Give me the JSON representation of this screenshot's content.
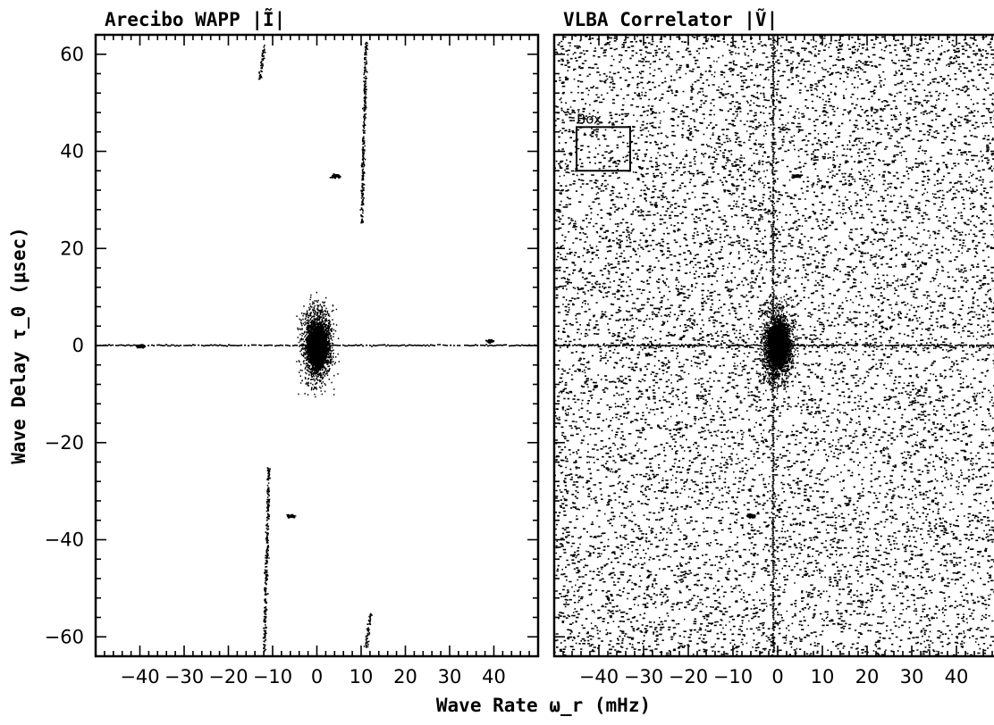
{
  "chart_data": {
    "type": "heatmap",
    "xlabel": "Wave Rate ω_r (mHz)",
    "ylabel": "Wave Delay τ_0  (μsec)",
    "xlim": [
      -50,
      50
    ],
    "ylim": [
      -64,
      64
    ],
    "x_ticks": [
      -40,
      -30,
      -20,
      -10,
      0,
      10,
      20,
      30,
      40
    ],
    "x_tick_labels": [
      "−40",
      "−30",
      "−20",
      "−10",
      "0",
      "10",
      "20",
      "30",
      "40"
    ],
    "y_ticks": [
      60,
      40,
      20,
      0,
      -20,
      -40,
      -60
    ],
    "y_tick_labels": [
      "60",
      "40",
      "20",
      "0",
      "−20",
      "−40",
      "−60"
    ],
    "panels": [
      {
        "title": "Arecibo WAPP |Ĩ|",
        "features": [
          {
            "kind": "central-core",
            "x": 0,
            "y": 0
          },
          {
            "kind": "horizontal-line",
            "y": 0
          },
          {
            "kind": "spot",
            "x": 4,
            "y": 35
          },
          {
            "kind": "spot",
            "x": -6,
            "y": -35
          },
          {
            "kind": "spot",
            "x": -40,
            "y": 0
          },
          {
            "kind": "spot",
            "x": 39,
            "y": 1
          },
          {
            "kind": "streak",
            "x": [
              10,
              11
            ],
            "y": [
              25,
              63
            ]
          },
          {
            "kind": "streak",
            "x": [
              -12,
              -11
            ],
            "y": [
              -63,
              -25
            ]
          },
          {
            "kind": "streak",
            "x": [
              -13,
              -12
            ],
            "y": [
              55,
              62
            ]
          },
          {
            "kind": "streak",
            "x": [
              11,
              12
            ],
            "y": [
              -62,
              -55
            ]
          }
        ]
      },
      {
        "title": "VLBA Correlator |Ṽ|",
        "box": {
          "label": "Box",
          "x": [
            -45,
            -33
          ],
          "y": [
            36,
            45
          ]
        },
        "features": [
          {
            "kind": "central-core",
            "x": 0,
            "y": 0
          },
          {
            "kind": "horizontal-line",
            "y": 0
          },
          {
            "kind": "vertical-line",
            "x": -1
          },
          {
            "kind": "noise-background"
          },
          {
            "kind": "spot",
            "x": 4,
            "y": 35
          },
          {
            "kind": "spot",
            "x": -6,
            "y": -35
          }
        ]
      }
    ]
  }
}
